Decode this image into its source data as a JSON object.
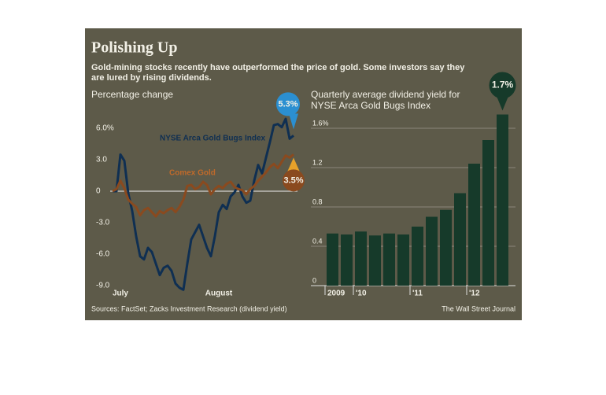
{
  "title": "Polishing Up",
  "subtitle": [
    "Gold-mining stocks recently have outperformed the price of gold. Some investors say they",
    "are lured by rising dividends."
  ],
  "source": "Sources: FactSet; Zacks Investment Research (dividend yield)",
  "credit": "The Wall Street Journal",
  "chart_data": [
    {
      "type": "line",
      "y_label": "Percentage change",
      "categories": [
        null,
        null,
        "July",
        null,
        null,
        null,
        null,
        null,
        null,
        null,
        null,
        null,
        null,
        null,
        null,
        null,
        null,
        null,
        null,
        null,
        null,
        null,
        null,
        null,
        null,
        null,
        null,
        "August",
        null,
        null,
        null,
        null,
        null,
        null,
        null,
        null,
        null,
        null,
        null,
        null,
        null,
        null,
        null,
        null,
        null,
        null,
        null
      ],
      "series": [
        {
          "name": "NYSE Arca Gold Bugs Index",
          "color": "#0f2f52",
          "end_value_label": "5.3%",
          "end_label_color": "#2b8fd1",
          "values": [
            0,
            0,
            3.5,
            2.9,
            -0.2,
            -1.9,
            -4.3,
            -6.2,
            -6.5,
            -5.4,
            -5.8,
            -6.9,
            -8.0,
            -7.3,
            -7.1,
            -7.6,
            -8.8,
            -9.2,
            -9.4,
            -6.9,
            -4.6,
            -3.9,
            -3.2,
            -4.3,
            -5.4,
            -6.2,
            -4.3,
            -2.0,
            -1.3,
            -1.7,
            -0.5,
            -0.1,
            0.6,
            -0.5,
            -1.1,
            -0.9,
            1.0,
            2.5,
            1.7,
            3.2,
            4.7,
            6.3,
            6.4,
            6.1,
            6.9,
            5.0,
            5.3
          ]
        },
        {
          "name": "Comex Gold",
          "color": "#8a4a1f",
          "end_value_label": "3.5%",
          "end_label_color": "#8a4a1f",
          "values": [
            0,
            0.2,
            1.0,
            0.3,
            -0.8,
            -1.2,
            -1.5,
            -2.3,
            -1.8,
            -1.6,
            -2.0,
            -2.4,
            -1.9,
            -2.1,
            -1.8,
            -1.6,
            -2.0,
            -1.5,
            -0.8,
            0.5,
            0.6,
            0.2,
            0.4,
            0.9,
            0.6,
            -0.3,
            0.2,
            0.5,
            0.3,
            0.7,
            0.9,
            0.4,
            0.2,
            0.1,
            -0.3,
            0.2,
            0.5,
            1.0,
            1.4,
            1.8,
            2.3,
            2.6,
            2.2,
            2.8,
            3.4,
            3.2,
            3.5
          ]
        }
      ],
      "ylim": [
        -9.5,
        7
      ],
      "yticks": [
        {
          "value": 6,
          "label": "6.0%"
        },
        {
          "value": 3,
          "label": "3.0"
        },
        0,
        {
          "value": -3,
          "label": "-3.0"
        },
        {
          "value": -6,
          "label": "-6.0"
        },
        {
          "value": -9,
          "label": "-9.0"
        }
      ],
      "zero_line": true
    },
    {
      "type": "bar",
      "title": [
        "Quarterly average dividend yield for",
        "NYSE Arca Gold Bugs Index"
      ],
      "categories": [
        "2009",
        null,
        "'10",
        null,
        null,
        null,
        "'11",
        null,
        null,
        null,
        "'12",
        null,
        null
      ],
      "values": [
        0.53,
        0.52,
        0.55,
        0.51,
        0.53,
        0.52,
        0.6,
        0.7,
        0.77,
        0.94,
        1.24,
        1.48,
        1.74
      ],
      "value_labels": [
        null,
        null,
        null,
        null,
        null,
        null,
        null,
        null,
        null,
        null,
        null,
        null,
        "1.7%"
      ],
      "color": "#163a2a",
      "ylim": [
        0,
        1.6
      ],
      "yticks": [
        0,
        0.4,
        0.8,
        1.2,
        {
          "value": 1.6,
          "label": "1.6%"
        }
      ],
      "grid": true
    }
  ]
}
